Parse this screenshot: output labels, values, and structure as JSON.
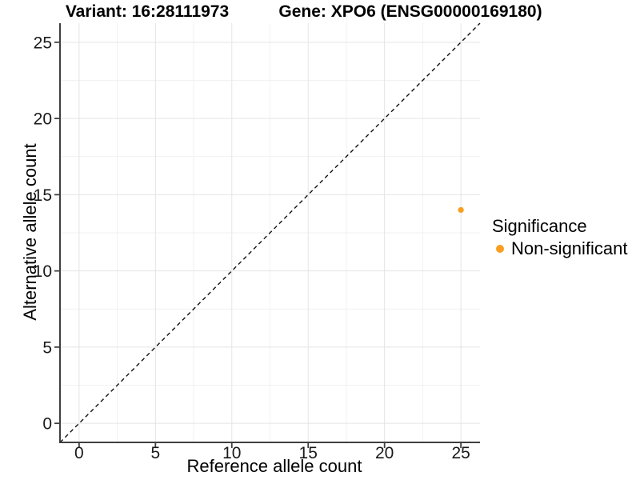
{
  "chart_data": {
    "type": "scatter",
    "titles": [
      "Variant: 16:28111973",
      "Gene: XPO6 (ENSG00000169180)"
    ],
    "xlabel": "Reference allele count",
    "ylabel": "Alternative allele count",
    "xlim": [
      -1.25,
      26.25
    ],
    "ylim": [
      -1.25,
      26.25
    ],
    "xticks": [
      0,
      5,
      10,
      15,
      20,
      25
    ],
    "yticks": [
      0,
      5,
      10,
      15,
      20,
      25
    ],
    "xminor": [
      2.5,
      7.5,
      12.5,
      17.5,
      22.5
    ],
    "yminor": [
      2.5,
      7.5,
      12.5,
      17.5,
      22.5
    ],
    "grid": "major-and-minor",
    "series": [
      {
        "name": "Non-significant",
        "color": "#F99E20",
        "points": [
          {
            "x": 25,
            "y": 14
          }
        ]
      }
    ],
    "reference_line": {
      "slope": 1,
      "intercept": 0,
      "linestyle": "dashed",
      "color": "#101010"
    },
    "legend": {
      "title": "Significance",
      "position": "right",
      "items": [
        {
          "label": "Non-significant",
          "color": "#F99E20",
          "marker": "circle"
        }
      ]
    },
    "colors": {
      "background": "#FFFFFF",
      "grid_major": "#E4E4E4",
      "grid_minor": "#F1F1F1",
      "axis_line": "#3F3F3F",
      "tick_text": "#1A1A1A"
    }
  }
}
